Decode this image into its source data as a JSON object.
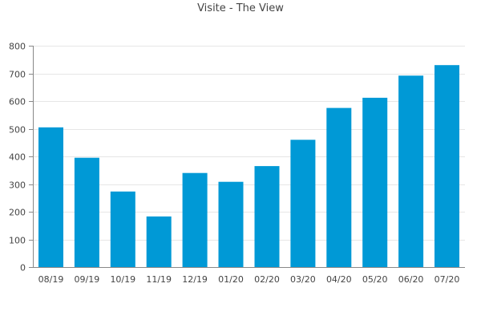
{
  "chart_data": {
    "type": "bar",
    "title": "Visite - The View",
    "xlabel": "",
    "ylabel": "",
    "categories": [
      "08/19",
      "09/19",
      "10/19",
      "11/19",
      "12/19",
      "01/20",
      "02/20",
      "03/20",
      "04/20",
      "05/20",
      "06/20",
      "07/20"
    ],
    "values": [
      505,
      395,
      273,
      183,
      340,
      308,
      365,
      460,
      575,
      612,
      692,
      730
    ],
    "ylim": [
      0,
      800
    ],
    "yticks": [
      0,
      100,
      200,
      300,
      400,
      500,
      600,
      700,
      800
    ],
    "grid": true,
    "legend": "none",
    "colors": {
      "bar": "#0099d6",
      "grid": "#e6e6e6",
      "axis": "#888888",
      "text": "#444444"
    }
  }
}
